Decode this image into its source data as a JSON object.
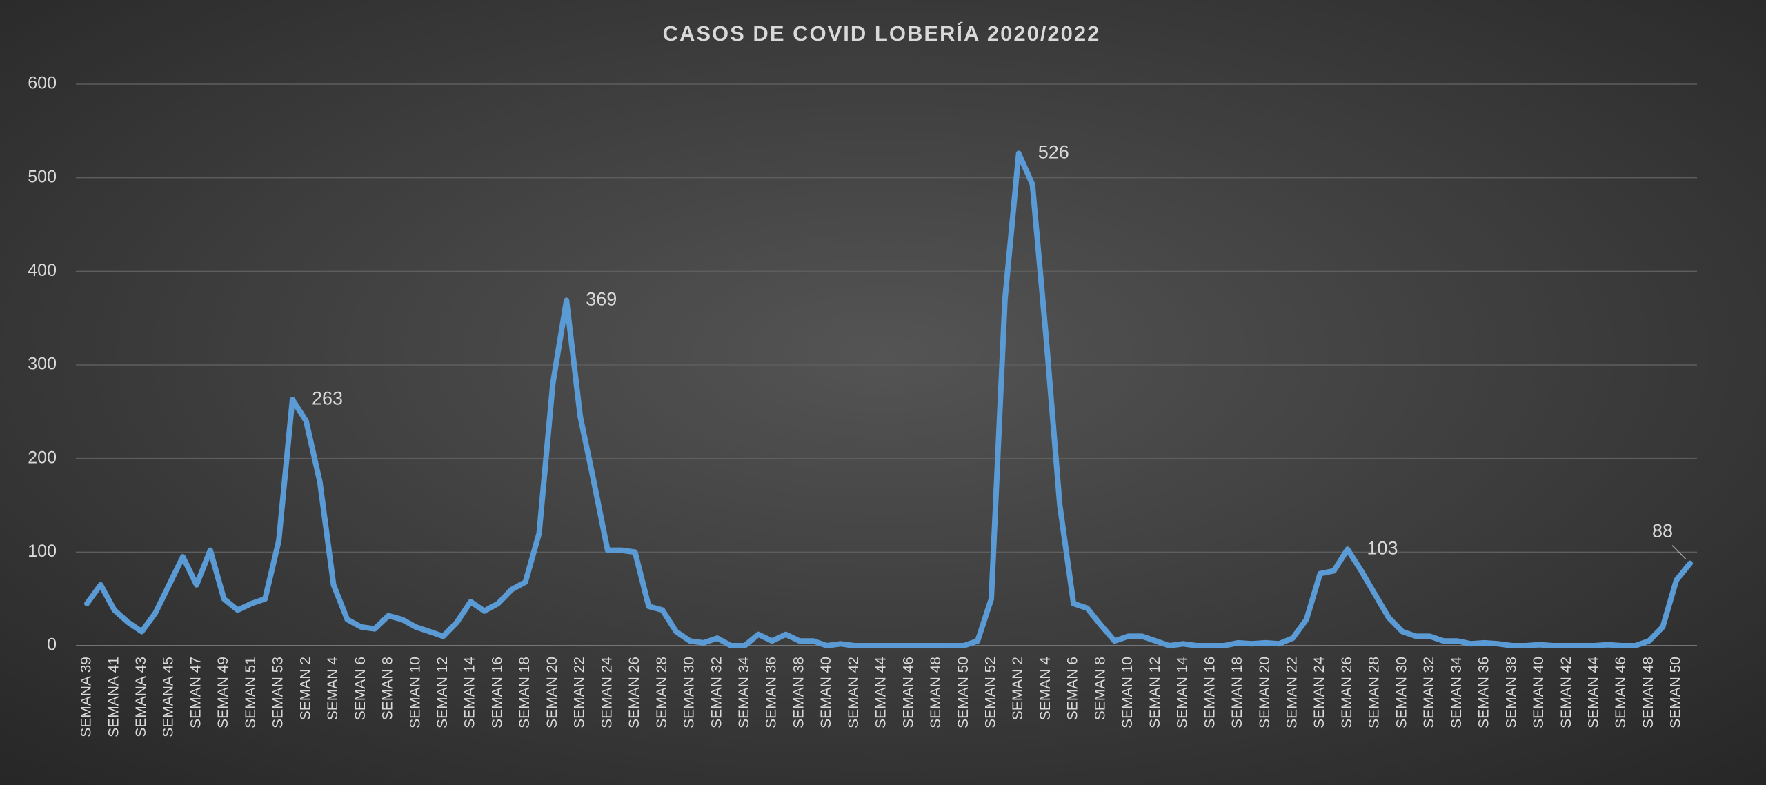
{
  "chart_data": {
    "type": "line",
    "title": "CASOS  DE COVID  LOBERÍA  2020/2022",
    "categories": [
      "SEMANA 39",
      null,
      "SEMANA 41",
      null,
      "SEMANA 43",
      null,
      "SEMANA 45",
      null,
      "SEMAN 47",
      null,
      "SEMAN 49",
      null,
      "SEMAN 51",
      null,
      "SEMAN 53",
      null,
      "SEMAN 2",
      null,
      "SEMAN 4",
      null,
      "SEMAN 6",
      null,
      "SEMAN 8",
      null,
      "SEMAN 10",
      null,
      "SEMAN 12",
      null,
      "SEMAN 14",
      null,
      "SEMAN 16",
      null,
      "SEMAN 18",
      null,
      "SEMAN 20",
      null,
      "SEMAN 22",
      null,
      "SEMAN 24",
      null,
      "SEMAN 26",
      null,
      "SEMAN 28",
      null,
      "SEMAN 30",
      null,
      "SEMAN 32",
      null,
      "SEMAN 34",
      null,
      "SEMAN 36",
      null,
      "SEMAN 38",
      null,
      "SEMAN 40",
      null,
      "SEMAN 42",
      null,
      "SEMAN 44",
      null,
      "SEMAN 46",
      null,
      "SEMAN 48",
      null,
      "SEMAN 50",
      null,
      "SEMAN 52",
      null,
      "SEMAN 2",
      null,
      "SEMAN 4",
      null,
      "SEMAN 6",
      null,
      "SEMAN 8",
      null,
      "SEMAN 10",
      null,
      "SEMAN 12",
      null,
      "SEMAN 14",
      null,
      "SEMAN 16",
      null,
      "SEMAN 18",
      null,
      "SEMAN 20",
      null,
      "SEMAN 22",
      null,
      "SEMAN 24",
      null,
      "SEMAN 26",
      null,
      "SEMAN 28",
      null,
      "SEMAN 30",
      null,
      "SEMAN 32",
      null,
      "SEMAN 34",
      null,
      "SEMAN 36",
      null,
      "SEMAN 38",
      null,
      "SEMAN 40",
      null,
      "SEMAN 42",
      null,
      "SEMAN 44",
      null,
      "SEMAN 46",
      null,
      "SEMAN 48",
      null,
      "SEMAN 50",
      null
    ],
    "values": [
      45,
      65,
      38,
      25,
      15,
      35,
      65,
      95,
      65,
      102,
      50,
      38,
      45,
      50,
      112,
      263,
      240,
      175,
      65,
      28,
      20,
      18,
      32,
      28,
      20,
      15,
      10,
      25,
      47,
      37,
      45,
      60,
      68,
      120,
      280,
      369,
      245,
      175,
      102,
      102,
      100,
      42,
      38,
      15,
      5,
      3,
      8,
      0,
      0,
      12,
      5,
      12,
      5,
      5,
      0,
      2,
      0,
      0,
      0,
      0,
      0,
      0,
      0,
      0,
      0,
      5,
      50,
      370,
      526,
      493,
      330,
      150,
      45,
      40,
      22,
      5,
      10,
      10,
      5,
      0,
      2,
      0,
      0,
      0,
      3,
      2,
      3,
      2,
      8,
      28,
      77,
      80,
      103,
      80,
      55,
      30,
      15,
      10,
      10,
      5,
      5,
      2,
      3,
      2,
      0,
      0,
      1,
      0,
      0,
      0,
      0,
      1,
      0,
      0,
      5,
      20,
      70,
      88
    ],
    "value_labels": [
      null,
      null,
      null,
      null,
      null,
      null,
      null,
      null,
      null,
      null,
      null,
      null,
      null,
      null,
      null,
      "263",
      null,
      null,
      null,
      null,
      null,
      null,
      null,
      null,
      null,
      null,
      null,
      null,
      null,
      null,
      null,
      null,
      null,
      null,
      null,
      "369",
      null,
      null,
      null,
      null,
      null,
      null,
      null,
      null,
      null,
      null,
      null,
      null,
      null,
      null,
      null,
      null,
      null,
      null,
      null,
      null,
      null,
      null,
      null,
      null,
      null,
      null,
      null,
      null,
      null,
      null,
      null,
      null,
      "526",
      null,
      null,
      null,
      null,
      null,
      null,
      null,
      null,
      null,
      null,
      null,
      null,
      null,
      null,
      null,
      null,
      null,
      null,
      null,
      null,
      null,
      null,
      null,
      "103",
      null,
      null,
      null,
      null,
      null,
      null,
      null,
      null,
      null,
      null,
      null,
      null,
      null,
      null,
      null,
      null,
      null,
      null,
      null,
      null,
      null,
      null,
      null,
      null,
      "88"
    ],
    "color": "#5b9bd5",
    "ylim": [
      0,
      600
    ],
    "yticks": [
      0,
      100,
      200,
      300,
      400,
      500,
      600
    ],
    "grid": true
  }
}
